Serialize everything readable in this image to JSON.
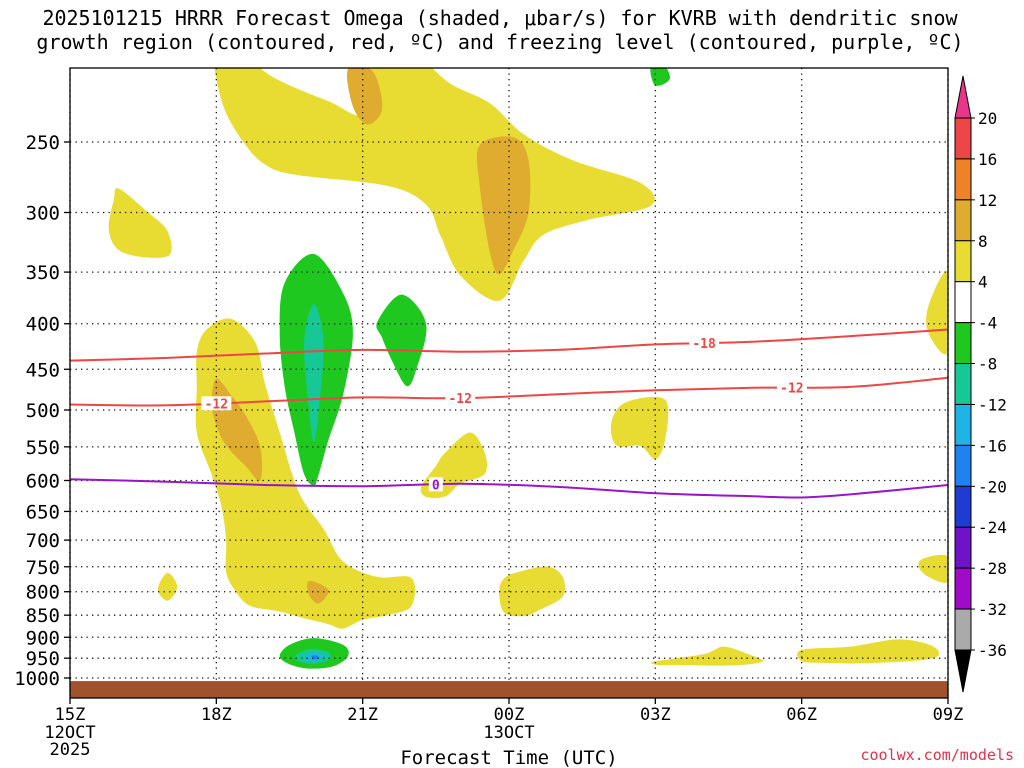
{
  "title_line1": "2025101215 HRRR Forecast Omega (shaded, μbar/s) for KVRB with dendritic snow",
  "title_line2": "growth region (contoured, red, ºC) and freezing level (contoured, purple, ºC)",
  "credit": "coolwx.com/models",
  "chart_data": {
    "type": "time-height cross section",
    "title": "2025101215 HRRR Forecast Omega (shaded, μbar/s) for KVRB with dendritic snow growth region (contoured, red, ºC) and freezing level (contoured, purple, ºC)",
    "xlabel": "Forecast Time (UTC)",
    "ylabel": "",
    "x_ticks": [
      {
        "label": "15Z",
        "sub1": "12OCT",
        "sub2": "2025",
        "hours": 0
      },
      {
        "label": "18Z",
        "sub1": "",
        "sub2": "",
        "hours": 3
      },
      {
        "label": "21Z",
        "sub1": "",
        "sub2": "",
        "hours": 6
      },
      {
        "label": "00Z",
        "sub1": "13OCT",
        "sub2": "",
        "hours": 9
      },
      {
        "label": "03Z",
        "sub1": "",
        "sub2": "",
        "hours": 12
      },
      {
        "label": "06Z",
        "sub1": "",
        "sub2": "",
        "hours": 15
      },
      {
        "label": "09Z",
        "sub1": "",
        "sub2": "",
        "hours": 18
      }
    ],
    "xlim": [
      0,
      18
    ],
    "y_ticks": [
      250,
      300,
      350,
      400,
      450,
      500,
      550,
      600,
      650,
      700,
      750,
      800,
      850,
      900,
      950,
      1000
    ],
    "ylim": [
      200,
      1000
    ],
    "ground_level_hpa": 1008,
    "colorbar": {
      "labels": [
        "20",
        "16",
        "12",
        "8",
        "4",
        "-4",
        "-8",
        "-12",
        "-16",
        "-20",
        "-24",
        "-28",
        "-32",
        "-36"
      ],
      "colors": [
        "#e8368a",
        "#ee4646",
        "#ee8228",
        "#e0ac30",
        "#e8dc32",
        "#ffffff",
        "#1ec81e",
        "#16c896",
        "#1eb4e6",
        "#1e82f0",
        "#1e3cd2",
        "#6e14c8",
        "#a00ac8",
        "#aaaaaa",
        "#000000"
      ]
    },
    "shaded_regions": [
      {
        "level": "4",
        "color": "#e8dc32",
        "points": [
          [
            3.0,
            199
          ],
          [
            3.5,
            199
          ],
          [
            4.2,
            212
          ],
          [
            5.3,
            225
          ],
          [
            6.0,
            232
          ],
          [
            6.0,
            199
          ],
          [
            7.0,
            199
          ],
          [
            7.8,
            215
          ],
          [
            8.6,
            226
          ],
          [
            9.3,
            245
          ],
          [
            10.3,
            262
          ],
          [
            11.7,
            278
          ],
          [
            11.9,
            295
          ],
          [
            10.6,
            306
          ],
          [
            9.7,
            318
          ],
          [
            9.3,
            340
          ],
          [
            8.8,
            377
          ],
          [
            8.0,
            353
          ],
          [
            7.6,
            319
          ],
          [
            7.3,
            294
          ],
          [
            6.5,
            280
          ],
          [
            4.6,
            272
          ],
          [
            4.0,
            265
          ],
          [
            3.6,
            252
          ],
          [
            3.2,
            232
          ],
          [
            3.0,
            212
          ]
        ]
      },
      {
        "level": "8",
        "color": "#e0ac30",
        "points": [
          [
            5.7,
            207
          ],
          [
            6.2,
            208
          ],
          [
            6.4,
            229
          ],
          [
            6.1,
            239
          ],
          [
            5.8,
            228
          ]
        ]
      },
      {
        "level": "8",
        "color": "#e0ac30",
        "points": [
          [
            8.4,
            252
          ],
          [
            9.1,
            247
          ],
          [
            9.4,
            262
          ],
          [
            9.4,
            300
          ],
          [
            9.1,
            330
          ],
          [
            8.8,
            352
          ],
          [
            8.6,
            331
          ],
          [
            8.4,
            280
          ]
        ]
      },
      {
        "level": "4",
        "color": "#e8dc32",
        "points": [
          [
            0.9,
            290
          ],
          [
            1.0,
            282
          ],
          [
            1.6,
            300
          ],
          [
            2.0,
            315
          ],
          [
            2.0,
            336
          ],
          [
            1.1,
            333
          ],
          [
            0.8,
            315
          ]
        ]
      },
      {
        "level": "4",
        "color": "#e8dc32",
        "points": [
          [
            2.8,
            406
          ],
          [
            3.3,
            395
          ],
          [
            3.8,
            420
          ],
          [
            4.0,
            468
          ],
          [
            4.3,
            530
          ],
          [
            4.7,
            620
          ],
          [
            5.2,
            680
          ],
          [
            5.6,
            740
          ],
          [
            6.3,
            770
          ],
          [
            7.0,
            772
          ],
          [
            7.0,
            830
          ],
          [
            6.5,
            850
          ],
          [
            6.0,
            860
          ],
          [
            5.6,
            880
          ],
          [
            5.3,
            870
          ],
          [
            4.8,
            857
          ],
          [
            4.3,
            842
          ],
          [
            3.7,
            830
          ],
          [
            3.4,
            800
          ],
          [
            3.2,
            760
          ],
          [
            3.2,
            700
          ],
          [
            3.1,
            640
          ],
          [
            2.9,
            590
          ],
          [
            2.6,
            530
          ],
          [
            2.6,
            470
          ],
          [
            2.6,
            430
          ]
        ]
      },
      {
        "level": "8",
        "color": "#e0ac30",
        "points": [
          [
            3.0,
            461
          ],
          [
            3.3,
            481
          ],
          [
            3.6,
            507
          ],
          [
            3.9,
            550
          ],
          [
            3.9,
            600
          ],
          [
            3.6,
            578
          ],
          [
            3.2,
            548
          ],
          [
            3.0,
            520
          ],
          [
            2.9,
            490
          ]
        ]
      },
      {
        "level": "8",
        "color": "#e0ac30",
        "points": [
          [
            4.9,
            778
          ],
          [
            5.3,
            796
          ],
          [
            5.1,
            825
          ],
          [
            4.9,
            806
          ]
        ]
      },
      {
        "level": "4",
        "color": "#e8dc32",
        "points": [
          [
            2.0,
            762
          ],
          [
            2.2,
            790
          ],
          [
            2.0,
            819
          ],
          [
            1.8,
            795
          ]
        ]
      },
      {
        "level": "4",
        "color": "#e8dc32",
        "points": [
          [
            7.5,
            578
          ],
          [
            7.7,
            558
          ],
          [
            8.2,
            530
          ],
          [
            8.5,
            558
          ],
          [
            8.5,
            590
          ],
          [
            8.0,
            605
          ],
          [
            7.7,
            625
          ],
          [
            7.3,
            626
          ],
          [
            7.2,
            610
          ]
        ]
      },
      {
        "level": "4",
        "color": "#e8dc32",
        "points": [
          [
            11.4,
            490
          ],
          [
            12.2,
            487
          ],
          [
            12.2,
            540
          ],
          [
            12.0,
            568
          ],
          [
            11.7,
            549
          ],
          [
            11.2,
            548
          ],
          [
            11.1,
            516
          ]
        ]
      },
      {
        "level": "4",
        "color": "#e8dc32",
        "points": [
          [
            9.2,
            760
          ],
          [
            9.8,
            750
          ],
          [
            10.1,
            770
          ],
          [
            10.1,
            810
          ],
          [
            9.6,
            840
          ],
          [
            9.3,
            852
          ],
          [
            8.9,
            844
          ],
          [
            8.8,
            800
          ],
          [
            8.9,
            773
          ]
        ]
      },
      {
        "level": "4",
        "color": "#e8dc32",
        "points": [
          [
            12.0,
            958
          ],
          [
            13.0,
            940
          ],
          [
            13.4,
            922
          ],
          [
            13.9,
            940
          ],
          [
            14.2,
            958
          ],
          [
            13.6,
            968
          ],
          [
            12.4,
            967
          ],
          [
            12.0,
            966
          ]
        ]
      },
      {
        "level": "4",
        "color": "#e8dc32",
        "points": [
          [
            15.0,
            930
          ],
          [
            16.0,
            922
          ],
          [
            17.0,
            905
          ],
          [
            17.7,
            922
          ],
          [
            17.7,
            950
          ],
          [
            16.5,
            962
          ],
          [
            15.5,
            962
          ],
          [
            15.0,
            957
          ]
        ]
      },
      {
        "level": "4",
        "color": "#e8dc32",
        "points": [
          [
            17.5,
            734
          ],
          [
            18.0,
            730
          ],
          [
            18.0,
            780
          ],
          [
            17.6,
            770
          ],
          [
            17.4,
            750
          ]
        ]
      },
      {
        "level": "4",
        "color": "#e8dc32",
        "points": [
          [
            17.6,
            382
          ],
          [
            18.0,
            350
          ],
          [
            18.0,
            430
          ],
          [
            17.6,
            410
          ]
        ]
      },
      {
        "level": "-4",
        "color": "#1ec81e",
        "points": [
          [
            4.4,
            360
          ],
          [
            5.0,
            334
          ],
          [
            5.6,
            370
          ],
          [
            5.8,
            410
          ],
          [
            5.6,
            480
          ],
          [
            5.3,
            540
          ],
          [
            5.1,
            590
          ],
          [
            5.0,
            608
          ],
          [
            4.8,
            590
          ],
          [
            4.6,
            530
          ],
          [
            4.4,
            470
          ],
          [
            4.3,
            410
          ]
        ]
      },
      {
        "level": "-8",
        "color": "#16c896",
        "points": [
          [
            5.0,
            380
          ],
          [
            5.2,
            420
          ],
          [
            5.1,
            500
          ],
          [
            5.0,
            543
          ],
          [
            4.9,
            500
          ],
          [
            4.8,
            420
          ]
        ]
      },
      {
        "level": "-4",
        "color": "#1ec81e",
        "points": [
          [
            6.3,
            398
          ],
          [
            6.8,
            371
          ],
          [
            7.3,
            400
          ],
          [
            7.1,
            450
          ],
          [
            6.9,
            470
          ],
          [
            6.6,
            440
          ],
          [
            6.4,
            415
          ]
        ]
      },
      {
        "level": "-4",
        "color": "#1ec81e",
        "points": [
          [
            12.1,
            202
          ],
          [
            12.3,
            212
          ],
          [
            12.0,
            216
          ],
          [
            11.9,
            206
          ]
        ]
      },
      {
        "level": "-4",
        "color": "#1ec81e",
        "points": [
          [
            4.3,
            945
          ],
          [
            4.5,
            918
          ],
          [
            5.0,
            902
          ],
          [
            5.6,
            918
          ],
          [
            5.7,
            945
          ],
          [
            5.4,
            970
          ],
          [
            4.9,
            976
          ],
          [
            4.5,
            965
          ]
        ]
      },
      {
        "level": "-8",
        "color": "#16c896",
        "points": [
          [
            4.6,
            948
          ],
          [
            4.9,
            928
          ],
          [
            5.3,
            936
          ],
          [
            5.3,
            955
          ],
          [
            4.9,
            964
          ]
        ]
      },
      {
        "level": "-16",
        "color": "#1eb4e6",
        "points": [
          [
            4.8,
            948
          ],
          [
            5.0,
            938
          ],
          [
            5.2,
            945
          ],
          [
            5.0,
            957
          ]
        ]
      },
      {
        "level": "-20",
        "color": "#1e82f0",
        "points": [
          [
            4.95,
            945
          ],
          [
            5.05,
            943
          ],
          [
            5.1,
            950
          ],
          [
            5.0,
            953
          ]
        ]
      }
    ],
    "contours": [
      {
        "label": "-18",
        "color": "#ee4646",
        "label_at_hours": 13.0,
        "points": [
          [
            0,
            440
          ],
          [
            2,
            437
          ],
          [
            4,
            432
          ],
          [
            6,
            428
          ],
          [
            8,
            430
          ],
          [
            10,
            428
          ],
          [
            12,
            422
          ],
          [
            14,
            419
          ],
          [
            16,
            413
          ],
          [
            18,
            406
          ]
        ]
      },
      {
        "label": "-12",
        "color": "#ee4646",
        "label_at_hours": 3.0,
        "points": [
          [
            0,
            493
          ],
          [
            2,
            494
          ],
          [
            4,
            489
          ],
          [
            6,
            484
          ],
          [
            8,
            485
          ],
          [
            10,
            480
          ],
          [
            12,
            475
          ],
          [
            14,
            472
          ],
          [
            16,
            471
          ],
          [
            18,
            460
          ]
        ]
      },
      {
        "label": "-12",
        "color": "#ee4646",
        "label_at_hours": 8.0,
        "points": []
      },
      {
        "label": "-12",
        "color": "#ee4646",
        "label_at_hours": 14.8,
        "points": []
      },
      {
        "label": "0",
        "color": "#9a14c8",
        "label_at_hours": 7.5,
        "points": [
          [
            0,
            598
          ],
          [
            2,
            602
          ],
          [
            4,
            607
          ],
          [
            6,
            609
          ],
          [
            8,
            605
          ],
          [
            10,
            610
          ],
          [
            12,
            620
          ],
          [
            14,
            625
          ],
          [
            15,
            627
          ],
          [
            16,
            622
          ],
          [
            18,
            607
          ]
        ]
      }
    ]
  }
}
